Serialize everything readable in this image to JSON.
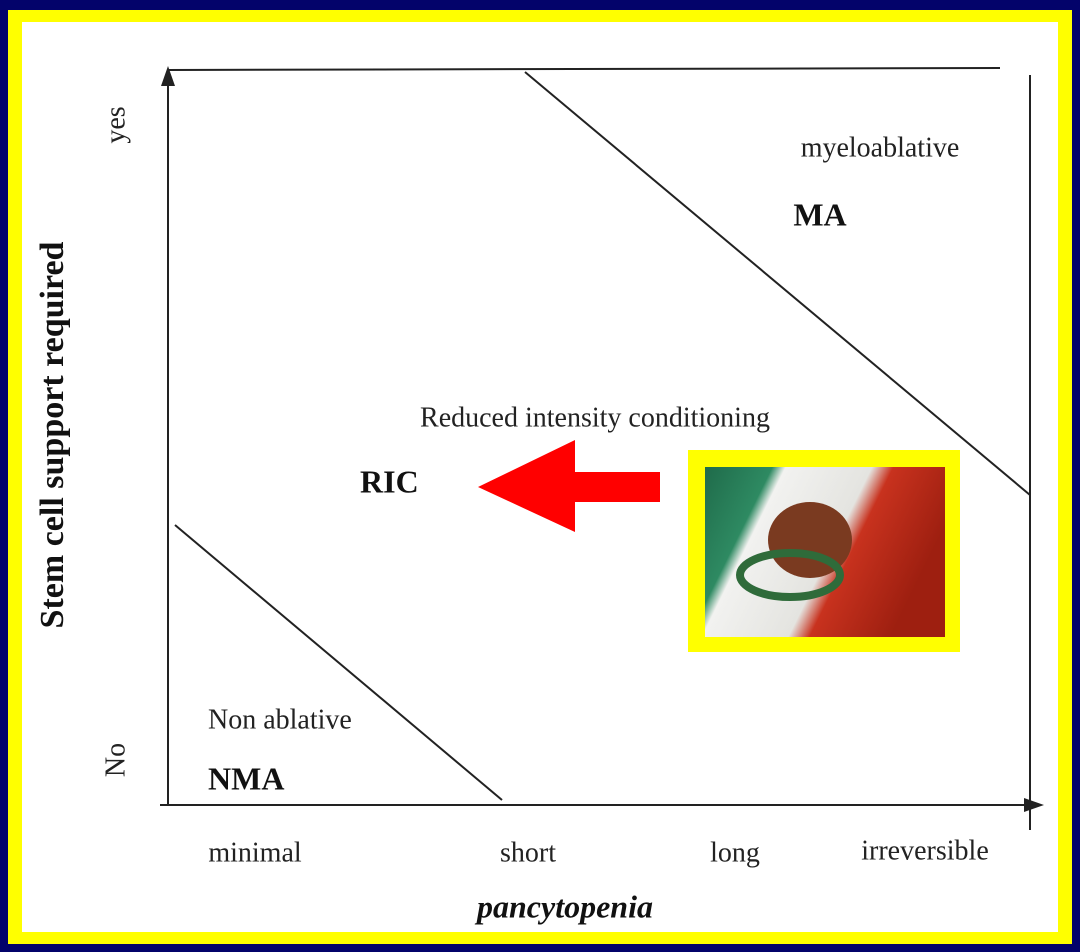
{
  "y_axis": {
    "label": "Stem cell support required",
    "ticks": [
      "yes",
      "No"
    ]
  },
  "x_axis": {
    "label": "pancytopenia",
    "ticks": [
      "minimal",
      "short",
      "long",
      "irreversible"
    ]
  },
  "regions": [
    {
      "name": "myeloablative",
      "abbr": "MA"
    },
    {
      "name": "Reduced intensity conditioning",
      "abbr": "RIC"
    },
    {
      "name": "Non ablative",
      "abbr": "NMA"
    }
  ]
}
